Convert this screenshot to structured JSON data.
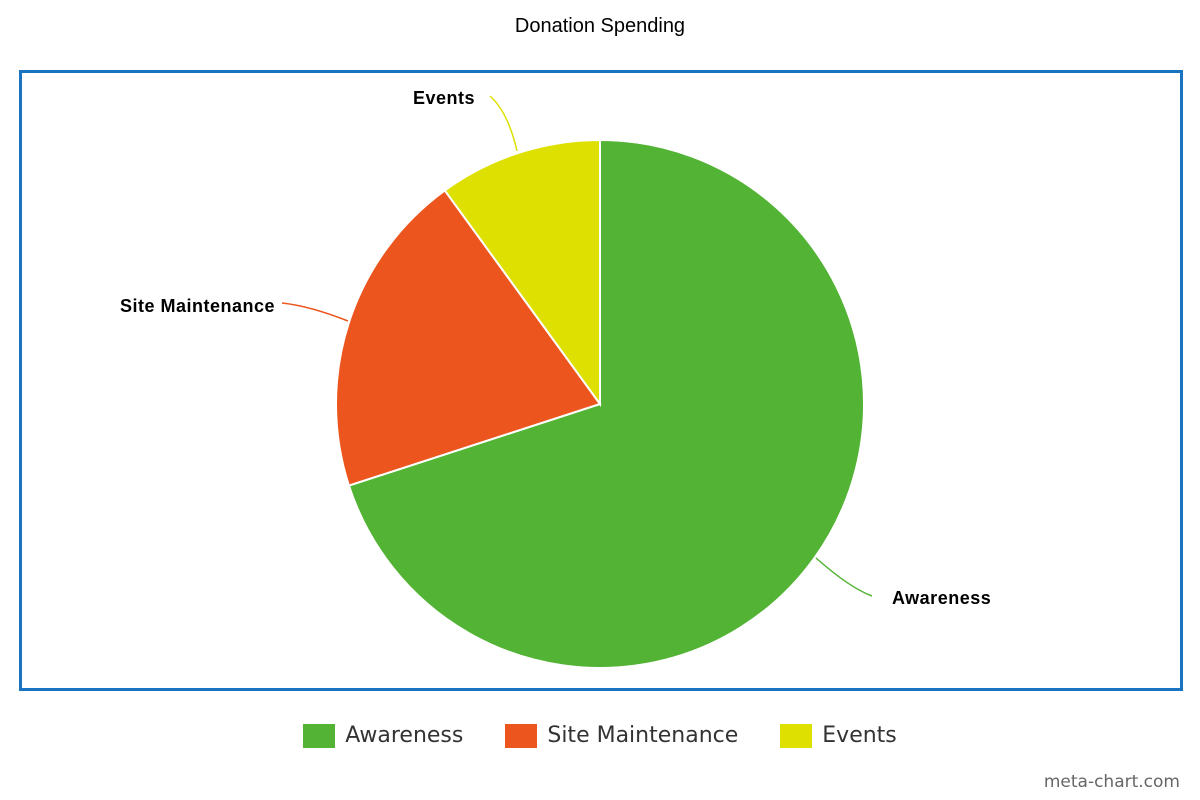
{
  "chart_data": {
    "type": "pie",
    "title": "Donation Spending",
    "categories": [
      "Awareness",
      "Site Maintenance",
      "Events"
    ],
    "values": [
      70,
      20,
      10
    ],
    "colors": [
      "#52b334",
      "#ec561e",
      "#dde000"
    ],
    "legend_position": "bottom",
    "show_slice_labels": true
  },
  "legend": {
    "items": [
      {
        "label": "Awareness",
        "color": "#52b334"
      },
      {
        "label": "Site Maintenance",
        "color": "#ec561e"
      },
      {
        "label": "Events",
        "color": "#dde000"
      }
    ]
  },
  "watermark": "meta-chart.com"
}
